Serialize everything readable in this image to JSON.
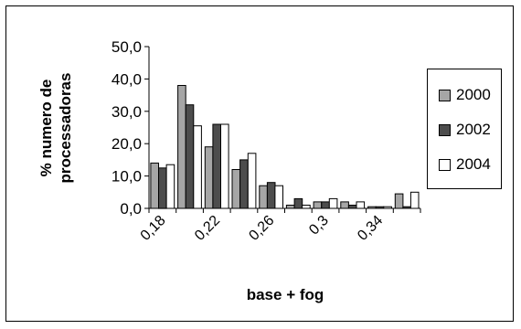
{
  "chart_data": {
    "type": "bar",
    "title": "",
    "xlabel": "base + fog",
    "ylabel_lines": [
      "% numero de",
      "processadoras"
    ],
    "ylim": [
      0,
      50
    ],
    "yticks": [
      "0,0",
      "10,0",
      "20,0",
      "30,0",
      "40,0",
      "50,0"
    ],
    "categories": [
      "0,18",
      "0,20",
      "0,22",
      "0,24",
      "0,26",
      "0,28",
      "0,3",
      "0,32",
      "0,34",
      "0,36"
    ],
    "visible_xtick_labels": [
      "0,18",
      "0,22",
      "0,26",
      "0,3",
      "0,34"
    ],
    "series": [
      {
        "name": "2000",
        "color": "#a6a6a6",
        "values": [
          14,
          38,
          19,
          12,
          7,
          1,
          2,
          2,
          0.5,
          4.5
        ]
      },
      {
        "name": "2002",
        "color": "#4d4d4d",
        "values": [
          12.5,
          32,
          26,
          15,
          8,
          3,
          2,
          1,
          0.5,
          0.5
        ]
      },
      {
        "name": "2004",
        "color": "#ffffff",
        "values": [
          13.5,
          25.5,
          26,
          17,
          7,
          1,
          3,
          2,
          0.5,
          5
        ]
      }
    ],
    "grid": false,
    "legend_position": "right"
  }
}
